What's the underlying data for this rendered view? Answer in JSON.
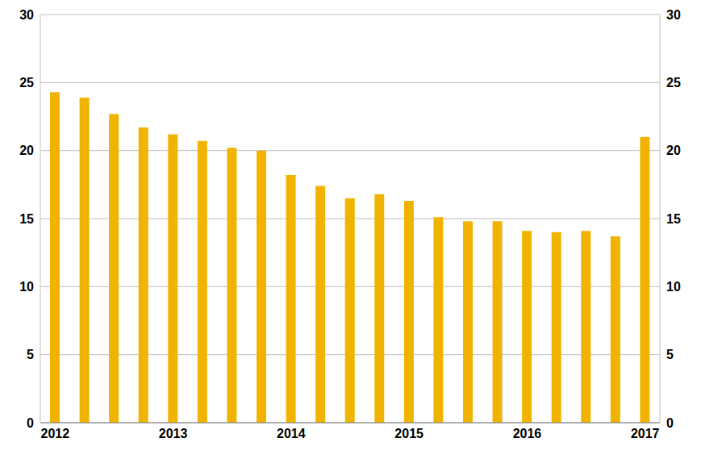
{
  "chart_data": {
    "type": "bar",
    "categories": [
      "2012",
      null,
      null,
      null,
      "2013",
      null,
      null,
      null,
      "2014",
      null,
      null,
      null,
      "2015",
      null,
      null,
      null,
      "2016",
      null,
      null,
      null,
      "2017"
    ],
    "values": [
      24.3,
      23.9,
      22.7,
      21.7,
      21.2,
      20.7,
      20.2,
      20.0,
      18.2,
      17.4,
      16.5,
      16.8,
      16.3,
      15.1,
      14.8,
      14.8,
      14.1,
      14.0,
      14.1,
      13.7,
      21.0
    ],
    "color": "#f0b400",
    "ylim": [
      0,
      30
    ],
    "yticks": [
      0,
      5,
      10,
      15,
      20,
      25,
      30
    ],
    "y2lim": [
      0,
      30
    ],
    "y2ticks": [
      0,
      5,
      10,
      15,
      20,
      25,
      30
    ],
    "grid": true
  }
}
